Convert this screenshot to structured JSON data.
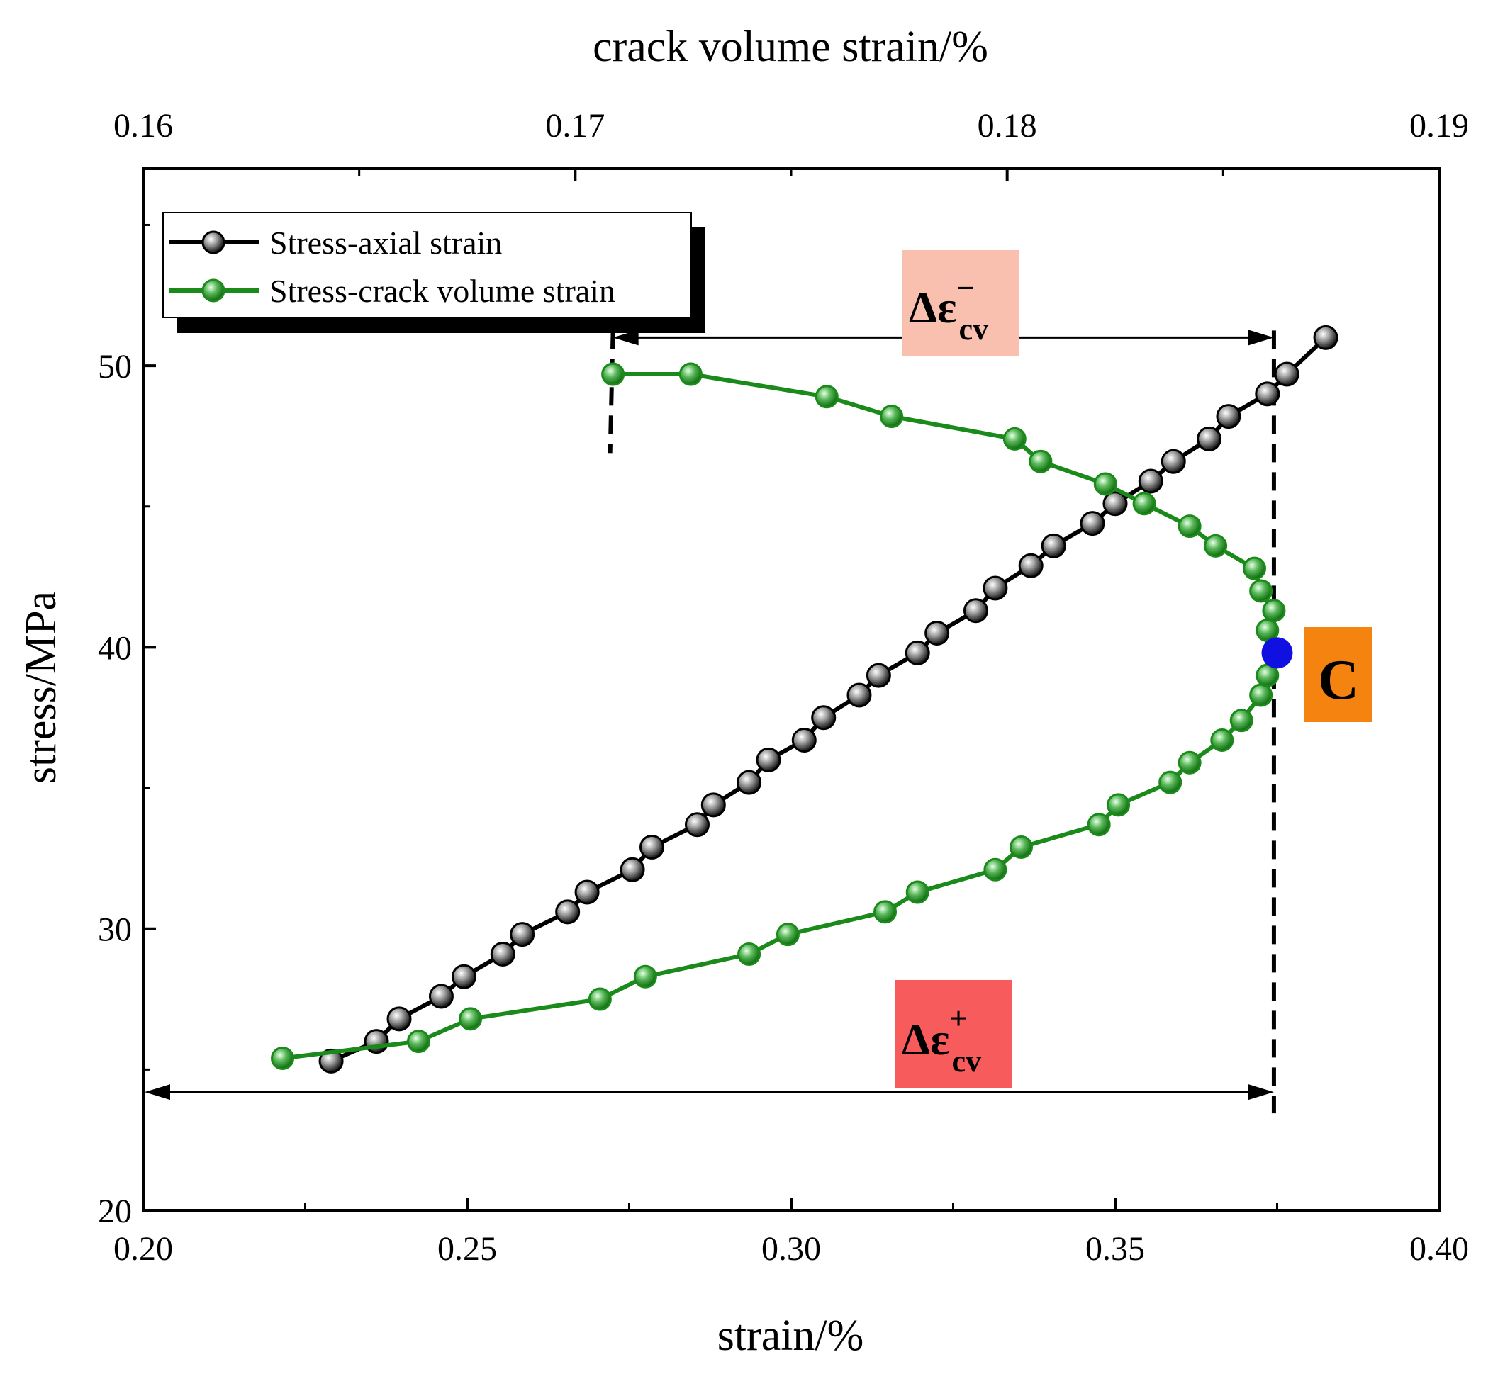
{
  "chart_data": {
    "type": "line",
    "title": "",
    "xlabel": "strain/%",
    "x2label": "crack volume strain/%",
    "ylabel": "stress/MPa",
    "xlim": [
      0.2,
      0.4
    ],
    "x2lim": [
      0.16,
      0.19
    ],
    "ylim": [
      20,
      57
    ],
    "x_ticks": [
      "0.20",
      "0.25",
      "0.30",
      "0.35",
      "0.40"
    ],
    "x2_ticks": [
      "0.16",
      "0.17",
      "0.18",
      "0.19"
    ],
    "y_ticks": [
      "20",
      "30",
      "40",
      "50"
    ],
    "legend_position": "top-left",
    "series": [
      {
        "name": "Stress-axial strain",
        "color": "#000000",
        "axis": "bottom",
        "x": [
          0.229,
          0.236,
          0.2395,
          0.246,
          0.2495,
          0.2555,
          0.2585,
          0.2655,
          0.2685,
          0.2755,
          0.2785,
          0.2855,
          0.288,
          0.2935,
          0.2965,
          0.302,
          0.305,
          0.3105,
          0.3135,
          0.3195,
          0.3225,
          0.3285,
          0.3315,
          0.337,
          0.3405,
          0.3465,
          0.35,
          0.3555,
          0.359,
          0.3645,
          0.3675,
          0.3735,
          0.3765,
          0.3825
        ],
        "y": [
          25.3,
          26.0,
          26.8,
          27.6,
          28.3,
          29.1,
          29.8,
          30.6,
          31.3,
          32.1,
          32.9,
          33.7,
          34.4,
          35.2,
          36.0,
          36.7,
          37.5,
          38.3,
          39.0,
          39.8,
          40.5,
          41.3,
          42.1,
          42.9,
          43.6,
          44.4,
          45.1,
          45.9,
          46.6,
          47.4,
          48.2,
          49.0,
          49.7,
          51.0
        ]
      },
      {
        "name": "Stress-crack volume strain",
        "color": "#1a8a1a",
        "axis": "bottom",
        "x": [
          0.2215,
          0.2425,
          0.2505,
          0.2705,
          0.2775,
          0.2935,
          0.2995,
          0.3145,
          0.3195,
          0.3315,
          0.3355,
          0.3475,
          0.3505,
          0.3585,
          0.3615,
          0.3665,
          0.3695,
          0.3725,
          0.3735,
          0.3735,
          0.3745,
          0.3725,
          0.3715,
          0.3655,
          0.3615,
          0.3545,
          0.3485,
          0.3385,
          0.3345,
          0.3155,
          0.3055,
          0.2845,
          0.2725
        ],
        "y": [
          25.4,
          26.0,
          26.8,
          27.5,
          28.3,
          29.1,
          29.8,
          30.6,
          31.3,
          32.1,
          32.9,
          33.7,
          34.4,
          35.2,
          35.9,
          36.7,
          37.4,
          38.3,
          39.0,
          40.6,
          41.3,
          42.0,
          42.8,
          43.6,
          44.3,
          45.1,
          45.8,
          46.6,
          47.4,
          48.2,
          48.9,
          49.7,
          49.7
        ]
      }
    ],
    "special_point": {
      "label": "C",
      "x": 0.375,
      "y": 39.8,
      "color": "#1010e0"
    },
    "annotations": [
      {
        "id": "delta_minus",
        "base": "Δε",
        "sup": "−",
        "sub": "cv",
        "bg": "#f9c0b0",
        "arrow_from_x": 0.2725,
        "arrow_to_x": 0.3745,
        "arrow_y": 51.0
      },
      {
        "id": "delta_plus",
        "base": "Δε",
        "sup": "+",
        "sub": "cv",
        "bg": "#f75b5b",
        "arrow_from_x": 0.2,
        "arrow_to_x": 0.3745,
        "arrow_y": 24.2
      }
    ],
    "c_label_bg": "#f5830f"
  }
}
